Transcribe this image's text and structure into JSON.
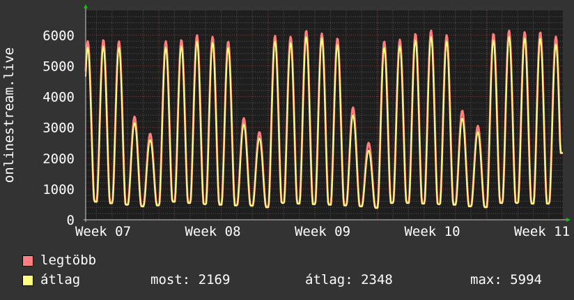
{
  "chart_data": {
    "type": "line",
    "ylabel": "onlinestream.live",
    "ylim": [
      0,
      6800
    ],
    "yticks": [
      0,
      1000,
      2000,
      3000,
      4000,
      5000,
      6000
    ],
    "xlim_days": [
      0,
      30.6
    ],
    "xtick_labels": [
      "Week 07",
      "Week 08",
      "Week 09",
      "Week 10",
      "Week 11"
    ],
    "grid": true,
    "legend_placement": "bottom-left",
    "series": [
      {
        "name": "legtöbb",
        "color": "#ff7f7f",
        "daily_peaks": [
          5800,
          5850,
          5800,
          3350,
          2800,
          5800,
          5850,
          6000,
          5950,
          5800,
          3300,
          2850,
          5980,
          5950,
          6150,
          6050,
          5900,
          3650,
          2500,
          5800,
          5850,
          6050,
          6150,
          6000,
          3550,
          3050,
          6050,
          6150,
          6100,
          6100,
          5950
        ],
        "daily_troughs": [
          600,
          550,
          500,
          450,
          480,
          600,
          560,
          520,
          500,
          480,
          470,
          420,
          560,
          540,
          520,
          500,
          480,
          450,
          400,
          560,
          560,
          540,
          520,
          500,
          450,
          420,
          560,
          560,
          540,
          540,
          520
        ]
      },
      {
        "name": "átlag",
        "color": "#ffff7f",
        "daily_peaks": [
          5600,
          5650,
          5600,
          3150,
          2600,
          5600,
          5650,
          5800,
          5750,
          5600,
          3100,
          2650,
          5800,
          5750,
          5950,
          5900,
          5700,
          3400,
          2250,
          5600,
          5650,
          5850,
          5950,
          5800,
          3300,
          2850,
          5850,
          5950,
          5900,
          5900,
          5700
        ],
        "daily_troughs": [
          580,
          530,
          480,
          430,
          460,
          580,
          540,
          500,
          480,
          460,
          450,
          400,
          540,
          520,
          500,
          480,
          460,
          430,
          380,
          540,
          540,
          520,
          500,
          480,
          430,
          400,
          540,
          540,
          520,
          520,
          500
        ]
      }
    ],
    "last_value": 2169
  },
  "legend": {
    "max_label": "legtöbb",
    "avg_label": "átlag",
    "most": "most: 2169",
    "atlag": "átlag: 2348",
    "max": "max: 5994"
  }
}
